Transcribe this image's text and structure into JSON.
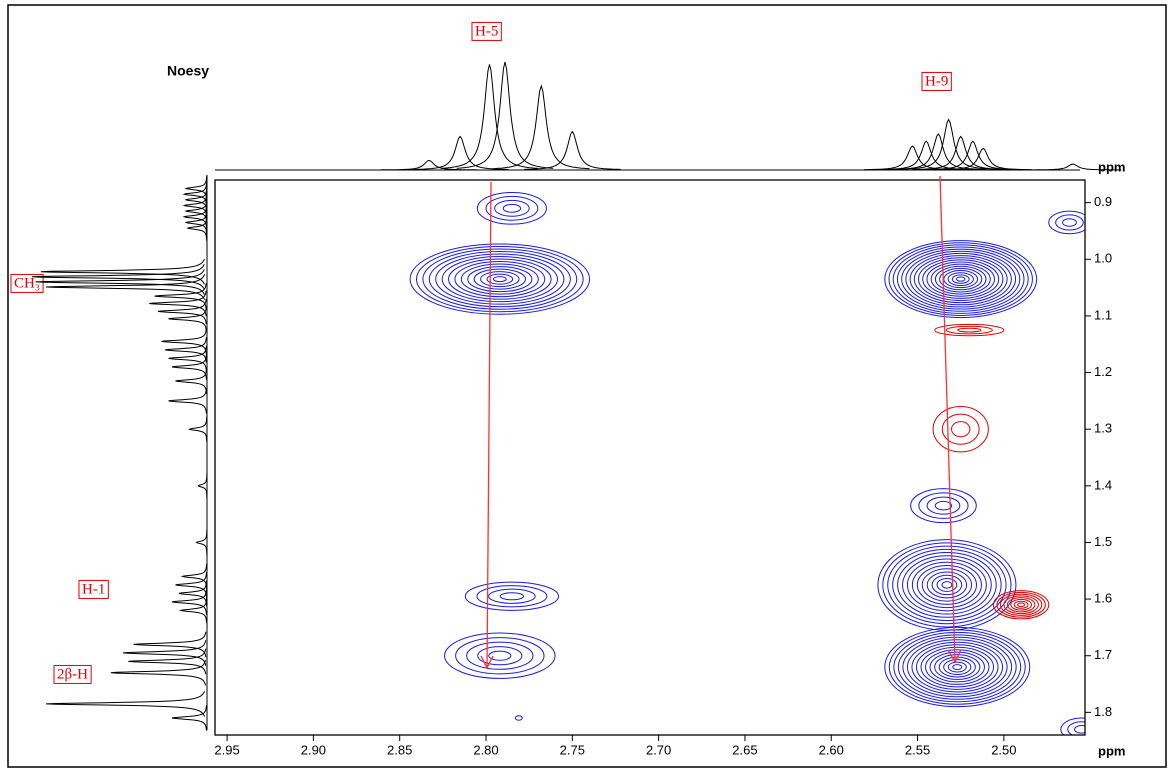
{
  "chart_data": {
    "type": "contour",
    "title": "Noesy",
    "x_label": "ppm",
    "y_label": "ppm",
    "xlim": [
      2.957,
      2.453
    ],
    "ylim": [
      0.86,
      1.84
    ],
    "xticks": [
      2.95,
      {
        "value": 2.9,
        "label": "2.90"
      },
      2.85,
      {
        "value": 2.8,
        "label": "2.80"
      },
      2.75,
      {
        "value": 2.7,
        "label": "2.70"
      },
      2.65,
      {
        "value": 2.6,
        "label": "2.60"
      },
      2.55,
      {
        "value": 2.5,
        "label": "2.50"
      }
    ],
    "yticks": [
      0.9,
      {
        "value": 1,
        "label": "1.0"
      },
      1.1,
      1.2,
      1.3,
      1.4,
      1.5,
      1.6,
      1.7,
      1.8
    ],
    "annotations": [
      "H-5",
      "H-9",
      "CH₃",
      "H-1",
      "2β-H"
    ],
    "peaks": [
      {
        "x": 2.785,
        "y": 0.91,
        "wx": 0.02,
        "wy": 0.028,
        "levels": 4,
        "color": "#1a1ae6"
      },
      {
        "x": 2.792,
        "y": 1.035,
        "wx": 0.052,
        "wy": 0.062,
        "levels": 14,
        "color": "#1a1ae6"
      },
      {
        "x": 2.525,
        "y": 1.035,
        "wx": 0.044,
        "wy": 0.068,
        "levels": 18,
        "color": "#1a1ae6"
      },
      {
        "x": 2.52,
        "y": 1.125,
        "wx": 0.02,
        "wy": 0.01,
        "levels": 3,
        "color": "#e00000"
      },
      {
        "x": 2.525,
        "y": 1.3,
        "wx": 0.016,
        "wy": 0.04,
        "levels": 3,
        "color": "#e00000"
      },
      {
        "x": 2.535,
        "y": 1.435,
        "wx": 0.019,
        "wy": 0.03,
        "levels": 4,
        "color": "#1a1ae6"
      },
      {
        "x": 2.533,
        "y": 1.575,
        "wx": 0.04,
        "wy": 0.08,
        "levels": 14,
        "color": "#1a1ae6"
      },
      {
        "x": 2.527,
        "y": 1.72,
        "wx": 0.042,
        "wy": 0.07,
        "levels": 16,
        "color": "#1a1ae6"
      },
      {
        "x": 2.49,
        "y": 1.61,
        "wx": 0.016,
        "wy": 0.025,
        "levels": 8,
        "color": "#e00000"
      },
      {
        "x": 2.785,
        "y": 1.595,
        "wx": 0.027,
        "wy": 0.025,
        "levels": 4,
        "color": "#1a1ae6"
      },
      {
        "x": 2.792,
        "y": 1.7,
        "wx": 0.032,
        "wy": 0.04,
        "levels": 5,
        "color": "#1a1ae6"
      },
      {
        "x": 2.462,
        "y": 0.935,
        "wx": 0.012,
        "wy": 0.02,
        "levels": 3,
        "color": "#1a1ae6"
      },
      {
        "x": 2.455,
        "y": 1.83,
        "wx": 0.012,
        "wy": 0.02,
        "levels": 3,
        "color": "#1a1ae6"
      },
      {
        "x": 2.781,
        "y": 1.81,
        "wx": 0.002,
        "wy": 0.004,
        "levels": 1,
        "color": "#1a1ae6"
      }
    ],
    "top_projection": {
      "x": [
        2.833,
        2.815,
        2.798,
        2.789,
        2.768,
        2.75,
        2.553,
        2.545,
        2.538,
        2.532,
        2.525,
        2.518,
        2.512,
        2.46
      ],
      "heights": [
        8,
        28,
        88,
        90,
        70,
        32,
        20,
        24,
        30,
        42,
        28,
        24,
        18,
        5
      ]
    },
    "left_projection": {
      "y": [
        0.875,
        0.885,
        0.895,
        0.905,
        0.915,
        0.925,
        0.935,
        0.945,
        1.022,
        1.031,
        1.04,
        1.049,
        1.065,
        1.078,
        1.092,
        1.105,
        1.145,
        1.16,
        1.175,
        1.19,
        1.215,
        1.25,
        1.3,
        1.4,
        1.5,
        1.56,
        1.575,
        1.59,
        1.605,
        1.62,
        1.68,
        1.695,
        1.71,
        1.73,
        1.785,
        1.81
      ],
      "heights": [
        12,
        13,
        12,
        13,
        12,
        13,
        12,
        11,
        95,
        100,
        98,
        92,
        30,
        33,
        28,
        22,
        26,
        24,
        22,
        20,
        18,
        22,
        10,
        5,
        6,
        14,
        18,
        16,
        20,
        15,
        42,
        48,
        45,
        55,
        92,
        20
      ]
    }
  }
}
